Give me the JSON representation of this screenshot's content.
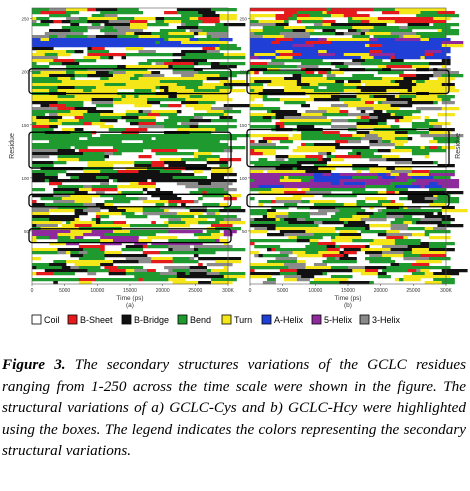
{
  "figure": {
    "panels": [
      {
        "id": "a",
        "label": "(a)",
        "xlabel": "Time (ps)",
        "ylabel": "Residue",
        "xticks": [
          "0",
          "5000",
          "10000",
          "15000",
          "20000",
          "25000",
          "300K"
        ],
        "yticks": [
          "50",
          "100",
          "150",
          "200",
          "250"
        ]
      },
      {
        "id": "b",
        "label": "(b)",
        "xlabel": "Time (ps)",
        "ylabel": "Residue",
        "xticks": [
          "0",
          "5000",
          "10000",
          "15000",
          "20000",
          "25000",
          "300K"
        ],
        "yticks": [
          "50",
          "100",
          "150",
          "200",
          "250"
        ]
      }
    ],
    "legend": [
      {
        "label": "Coil",
        "color": "#ffffff"
      },
      {
        "label": "B-Sheet",
        "color": "#e41a1c"
      },
      {
        "label": "B-Bridge",
        "color": "#111111"
      },
      {
        "label": "Bend",
        "color": "#1f9a2e"
      },
      {
        "label": "Turn",
        "color": "#f5e61a"
      },
      {
        "label": "A-Helix",
        "color": "#1f3fd6"
      },
      {
        "label": "5-Helix",
        "color": "#8e2a9c"
      },
      {
        "label": "3-Helix",
        "color": "#8a8a8a"
      }
    ]
  },
  "caption": {
    "label": "Figure 3.",
    "text": " The secondary structures variations of the GCLC residues ranging from 1-250 across the time scale were shown in the figure. The structural variations of a) GCLC-Cys and b) GCLC-Hcy were highlighted using the boxes. The legend indicates the colors representing the secondary structural variations."
  }
}
